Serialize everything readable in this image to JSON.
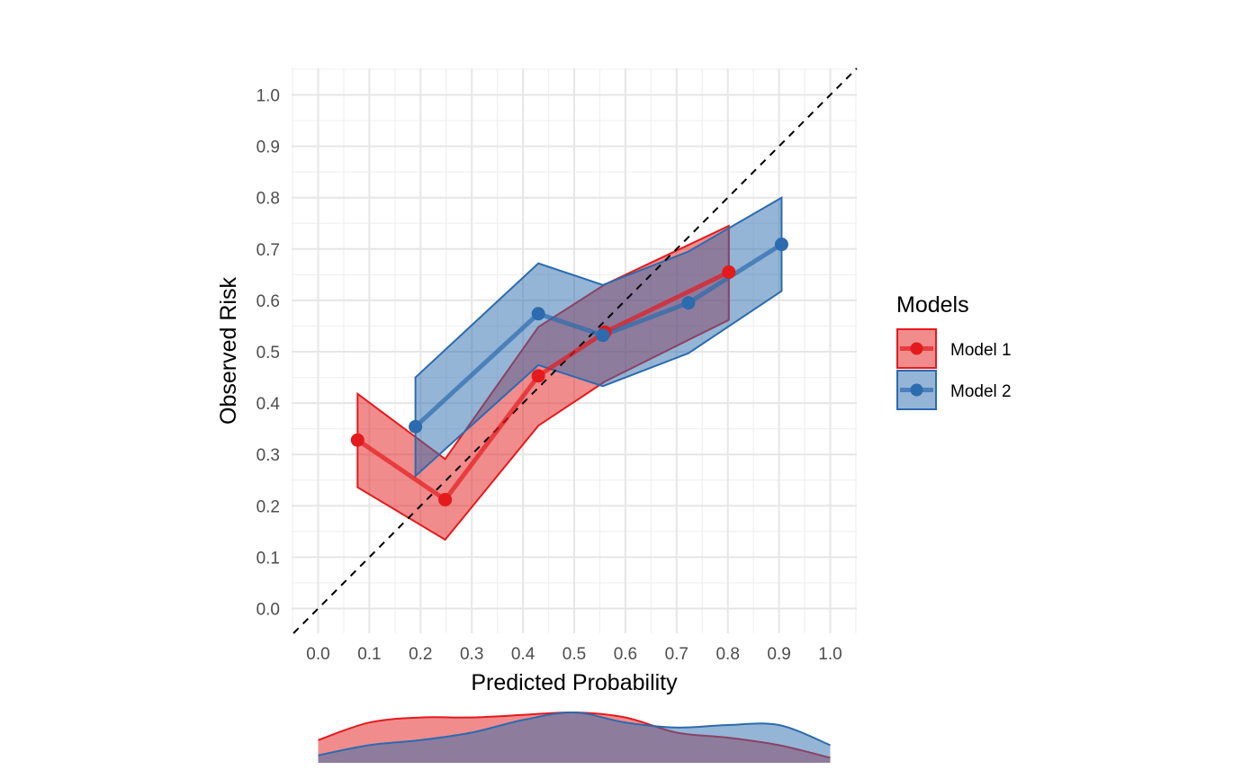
{
  "chart_data": {
    "type": "line",
    "xlabel": "Predicted Probability",
    "ylabel": "Observed Risk",
    "xlim": [
      0,
      1
    ],
    "ylim": [
      0,
      1
    ],
    "x_ticks": [
      "0.0",
      "0.1",
      "0.2",
      "0.3",
      "0.4",
      "0.5",
      "0.6",
      "0.7",
      "0.8",
      "0.9",
      "1.0"
    ],
    "y_ticks": [
      "0.0",
      "0.1",
      "0.2",
      "0.3",
      "0.4",
      "0.5",
      "0.6",
      "0.7",
      "0.8",
      "0.9",
      "1.0"
    ],
    "grid": true,
    "reference_line": {
      "from": [
        0,
        0
      ],
      "to": [
        1,
        1
      ],
      "style": "dashed"
    },
    "legend": {
      "title": "Models",
      "position": "right"
    },
    "series": [
      {
        "name": "Model 1",
        "color": "#E41A1C",
        "x": [
          0.077,
          0.248,
          0.43,
          0.56,
          0.802
        ],
        "y": [
          0.328,
          0.212,
          0.453,
          0.538,
          0.655
        ],
        "lower": [
          0.236,
          0.134,
          0.356,
          0.442,
          0.562
        ],
        "upper": [
          0.418,
          0.291,
          0.548,
          0.631,
          0.745
        ]
      },
      {
        "name": "Model 2",
        "color": "#2B6BAE",
        "x": [
          0.19,
          0.43,
          0.556,
          0.723,
          0.905
        ],
        "y": [
          0.354,
          0.574,
          0.532,
          0.595,
          0.709
        ],
        "lower": [
          0.258,
          0.474,
          0.433,
          0.497,
          0.618
        ],
        "upper": [
          0.45,
          0.672,
          0.63,
          0.695,
          0.8
        ]
      }
    ],
    "density": {
      "x": [
        0.0,
        0.1,
        0.2,
        0.3,
        0.4,
        0.5,
        0.6,
        0.7,
        0.8,
        0.9,
        1.0
      ],
      "series": [
        {
          "name": "Model 1",
          "values": [
            0.45,
            0.8,
            0.9,
            0.9,
            0.95,
            1.0,
            0.9,
            0.6,
            0.5,
            0.35,
            0.1
          ]
        },
        {
          "name": "Model 2",
          "values": [
            0.15,
            0.35,
            0.45,
            0.6,
            0.85,
            1.0,
            0.8,
            0.7,
            0.75,
            0.75,
            0.35
          ]
        }
      ]
    }
  }
}
